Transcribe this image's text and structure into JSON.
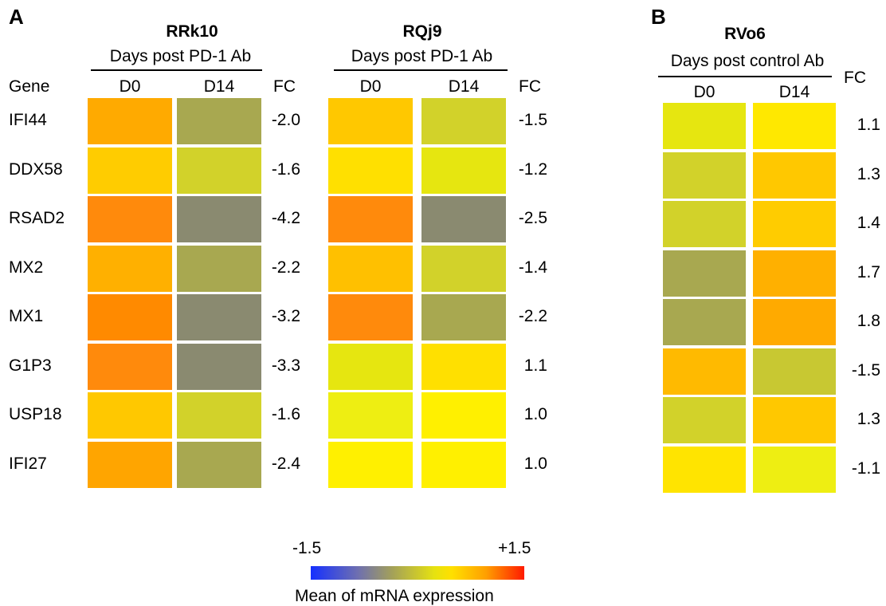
{
  "chart_data": {
    "type": "heatmap",
    "genes": [
      "IFI44",
      "DDX58",
      "RSAD2",
      "MX2",
      "MX1",
      "G1P3",
      "USP18",
      "IFI27"
    ],
    "panels": [
      {
        "panel_label": "A",
        "animal": "RRk10",
        "subtitle": "Days post PD-1 Ab",
        "row_header": "Gene",
        "columns": [
          "D0",
          "D14"
        ],
        "fc_header": "FC",
        "cell_colors": [
          [
            "#ffaa00",
            "#a8a850"
          ],
          [
            "#ffcc00",
            "#d2d22a"
          ],
          [
            "#ff8a0c",
            "#8a8a70"
          ],
          [
            "#ffb000",
            "#a8a850"
          ],
          [
            "#ff8a00",
            "#8a8a70"
          ],
          [
            "#ff8a0c",
            "#8a8a70"
          ],
          [
            "#ffc800",
            "#d2d22a"
          ],
          [
            "#ffa500",
            "#a8a850"
          ]
        ],
        "fc": [
          "-2.0",
          "-1.6",
          "-4.2",
          "-2.2",
          "-3.2",
          "-3.3",
          "-1.6",
          "-2.4"
        ]
      },
      {
        "panel_label": "",
        "animal": "RQj9",
        "subtitle": "Days post PD-1 Ab",
        "row_header": "",
        "columns": [
          "D0",
          "D14"
        ],
        "fc_header": "FC",
        "cell_colors": [
          [
            "#ffc800",
            "#d2d22a"
          ],
          [
            "#ffe000",
            "#e6e610"
          ],
          [
            "#ff8a0c",
            "#8a8a70"
          ],
          [
            "#ffc000",
            "#d2d22a"
          ],
          [
            "#ff8a0c",
            "#a8a850"
          ],
          [
            "#e6e610",
            "#ffe000"
          ],
          [
            "#eeee12",
            "#fff000"
          ],
          [
            "#fff000",
            "#fff000"
          ]
        ],
        "fc": [
          "-1.5",
          "-1.2",
          "-2.5",
          "-1.4",
          "-2.2",
          "1.1",
          "1.0",
          "1.0"
        ]
      },
      {
        "panel_label": "B",
        "animal": "RVo6",
        "subtitle": "Days post control Ab",
        "row_header": "",
        "columns": [
          "D0",
          "D14"
        ],
        "fc_header": "FC",
        "cell_colors": [
          [
            "#e6e610",
            "#ffe800"
          ],
          [
            "#d2d22a",
            "#ffc800"
          ],
          [
            "#d2d22a",
            "#ffcc00"
          ],
          [
            "#a8a850",
            "#ffb000"
          ],
          [
            "#a8a850",
            "#ffaa00"
          ],
          [
            "#ffba00",
            "#c8c832"
          ],
          [
            "#d2d22a",
            "#ffc800"
          ],
          [
            "#ffe400",
            "#eeee12"
          ]
        ],
        "fc": [
          "1.1",
          "1.3",
          "1.4",
          "1.7",
          "1.8",
          "-1.5",
          "1.3",
          "-1.1"
        ]
      }
    ],
    "colorbar": {
      "min_label": "-1.5",
      "max_label": "+1.5",
      "min": -1.5,
      "max": 1.5,
      "label": "Mean of mRNA expression",
      "colors": [
        "#1530ff",
        "#a3a05a",
        "#e6e210",
        "#ffa000",
        "#ff1a00"
      ]
    }
  }
}
